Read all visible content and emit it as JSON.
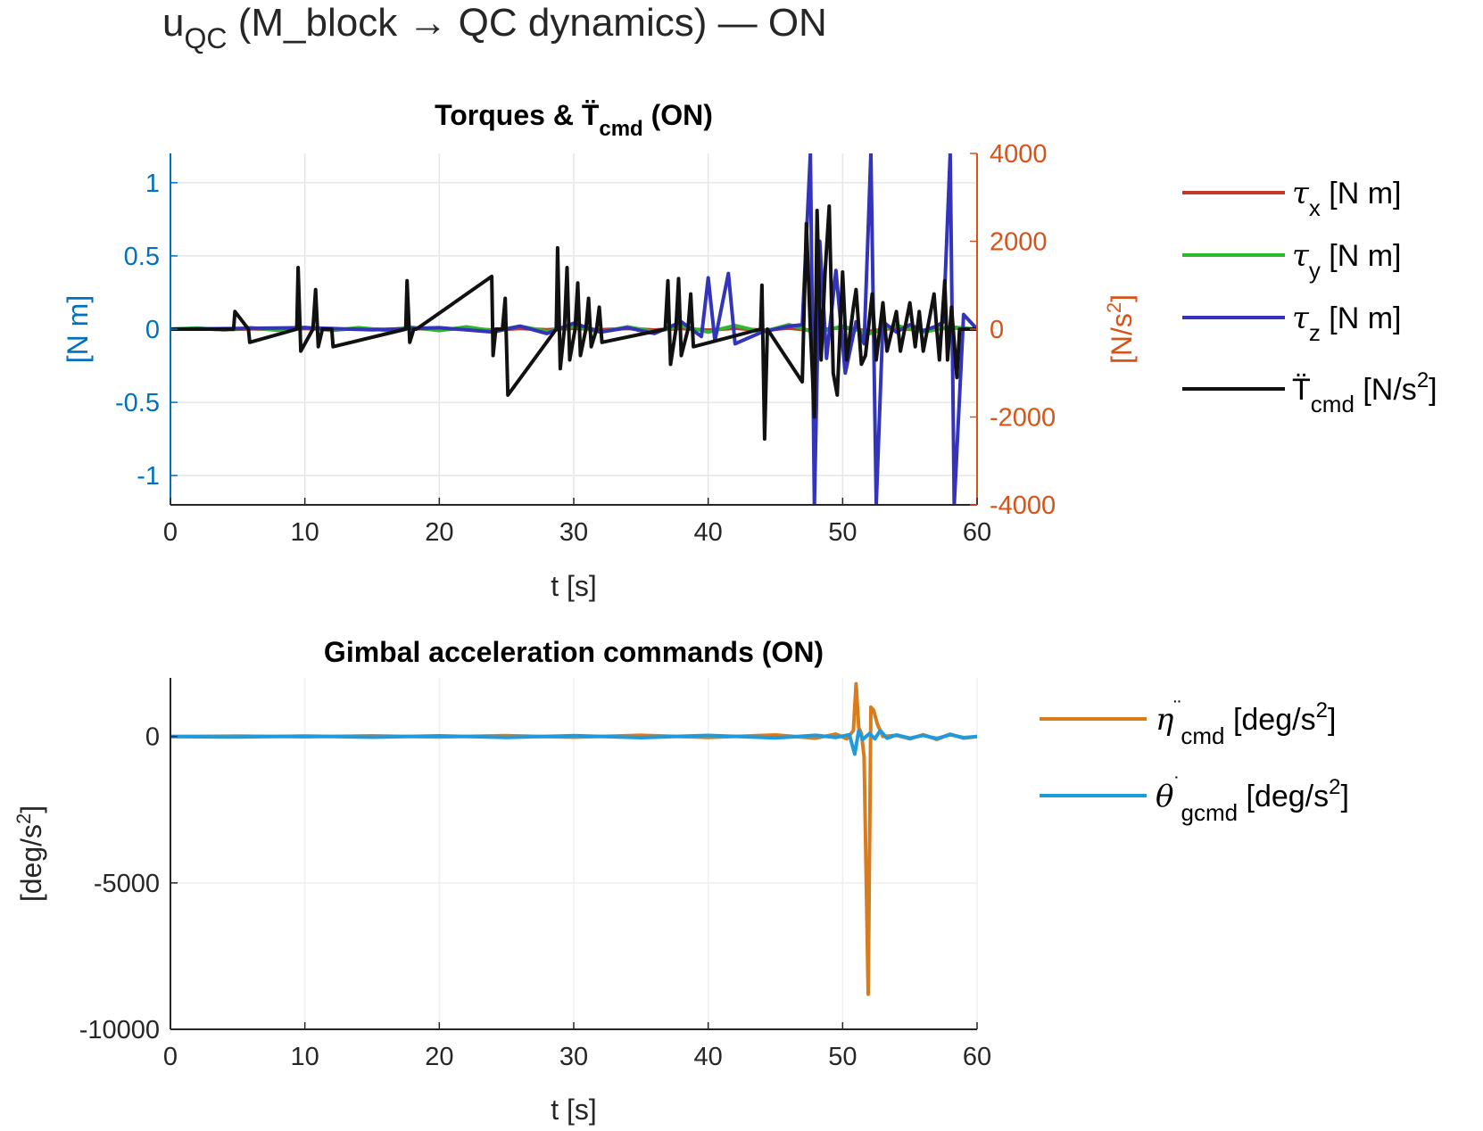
{
  "figure": {
    "title_main": "u",
    "title_sub": "QC",
    "title_rest": " (M_block → QC dynamics) — ON"
  },
  "chart_data": [
    {
      "type": "line",
      "title": "Torques & T̈ cmd (ON)",
      "title_parts": {
        "pre": "Torques & ",
        "base": "T̈",
        "sub": "cmd",
        "post": " (ON)"
      },
      "xlabel": "t [s]",
      "xlim": [
        0,
        60
      ],
      "xticks": [
        0,
        10,
        20,
        30,
        40,
        50,
        60
      ],
      "ylabel_left": "[N m]",
      "ylim_left": [
        -1.2,
        1.2
      ],
      "yticks_left": [
        -1,
        -0.5,
        0,
        0.5,
        1
      ],
      "yticklabels_left": [
        "-1",
        "-0.5",
        "0",
        "0.5",
        "1"
      ],
      "ylabel_right": "[N/s2]",
      "ylabel_right_parts": {
        "base": "[N/s",
        "sup": "2",
        "post": "]"
      },
      "ylim_right": [
        -4000,
        4000
      ],
      "yticks_right": [
        -4000,
        -2000,
        0,
        2000,
        4000
      ],
      "yticklabels_right": [
        "-4000",
        "-2000",
        "0",
        "2000",
        "4000"
      ],
      "left_axis_color": "#0072BD",
      "right_axis_color": "#D95319",
      "grid": true,
      "legend_position": "outside-right",
      "series": [
        {
          "name": "τx [N m]",
          "sym": "τ",
          "sub": "x",
          "unit": " [N m]",
          "sup": "",
          "color": "#C0392B",
          "axis": "left",
          "x": [
            0,
            2,
            4,
            6,
            8,
            10,
            12,
            14,
            16,
            18,
            20,
            22,
            24,
            26,
            28,
            30,
            32,
            34,
            36,
            38,
            40,
            42,
            44,
            46,
            48,
            50,
            52,
            54,
            56,
            58,
            60
          ],
          "y": [
            0,
            0.005,
            -0.004,
            0.003,
            -0.003,
            0.004,
            -0.005,
            0.004,
            -0.003,
            0.006,
            -0.004,
            0.005,
            -0.006,
            0.004,
            -0.005,
            0.006,
            -0.004,
            0.005,
            -0.006,
            0.005,
            -0.007,
            0.006,
            -0.008,
            0.007,
            -0.01,
            0.012,
            -0.015,
            0.01,
            -0.012,
            0.01,
            0
          ]
        },
        {
          "name": "τy [N m]",
          "sym": "τ",
          "sub": "y",
          "unit": " [N m]",
          "sup": "",
          "color": "#2DB82D",
          "axis": "left",
          "x": [
            0,
            2,
            4,
            6,
            8,
            10,
            12,
            14,
            16,
            18,
            20,
            22,
            24,
            26,
            28,
            30,
            32,
            34,
            36,
            38,
            40,
            42,
            44,
            46,
            48,
            50,
            52,
            54,
            56,
            58,
            60
          ],
          "y": [
            0,
            0.008,
            -0.006,
            0.01,
            -0.008,
            0.012,
            -0.01,
            0.01,
            -0.008,
            0.012,
            -0.01,
            0.015,
            -0.012,
            0.02,
            -0.015,
            0.018,
            -0.02,
            0.015,
            -0.018,
            0.02,
            -0.02,
            0.025,
            -0.02,
            0.03,
            -0.025,
            0.02,
            -0.03,
            0.025,
            -0.02,
            0.015,
            0
          ]
        },
        {
          "name": "τz [N m]",
          "sym": "τ",
          "sub": "z",
          "unit": " [N m]",
          "sup": "",
          "color": "#3333BB",
          "axis": "left",
          "x": [
            0,
            5,
            10,
            15,
            20,
            24,
            26,
            28,
            30,
            32,
            34,
            36,
            38,
            39.5,
            40,
            40.5,
            41,
            41.5,
            42,
            44,
            46,
            47,
            47.6,
            47.9,
            48.3,
            48.8,
            49.5,
            50.2,
            51,
            51.6,
            52.1,
            52.5,
            53,
            54,
            55,
            56,
            57,
            57.5,
            58,
            58.3,
            59,
            60
          ],
          "y": [
            0,
            0.005,
            0.01,
            -0.005,
            0.01,
            -0.02,
            0.02,
            -0.03,
            0.04,
            -0.02,
            0.01,
            -0.03,
            0.05,
            -0.05,
            0.35,
            -0.08,
            0.15,
            0.38,
            -0.1,
            -0.02,
            0.02,
            0.03,
            1.2,
            -1.2,
            0.6,
            -0.2,
            0.4,
            -0.3,
            0.05,
            -0.1,
            1.2,
            -1.2,
            0.05,
            -0.02,
            0.03,
            -0.01,
            0.02,
            0.05,
            1.2,
            -1.2,
            0.1,
            0
          ]
        },
        {
          "name": "T̈cmd [N/s2]",
          "sym": "T̈",
          "sub": "cmd",
          "unit": " [N/s",
          "sup": "2",
          "post": "]",
          "color": "#111111",
          "axis": "right",
          "x": [
            0,
            4.7,
            4.8,
            5.8,
            5.9,
            9.4,
            9.5,
            9.7,
            10.6,
            10.8,
            11.0,
            11.3,
            12.0,
            12.1,
            17.5,
            17.6,
            17.8,
            18.1,
            18.3,
            23.9,
            24.0,
            24.2,
            24.7,
            24.9,
            25.1,
            28.7,
            28.8,
            29.0,
            29.3,
            29.5,
            29.7,
            30.1,
            30.3,
            30.5,
            30.9,
            31.1,
            31.3,
            31.7,
            31.9,
            32.1,
            36.8,
            37.0,
            37.2,
            37.6,
            37.8,
            38.0,
            38.5,
            38.7,
            38.9,
            43.9,
            44.0,
            44.2,
            44.4,
            47.0,
            47.3,
            47.6,
            47.9,
            48.1,
            48.4,
            48.7,
            49.0,
            49.3,
            49.6,
            50.0,
            50.3,
            50.8,
            51.0,
            51.4,
            51.7,
            52.2,
            52.5,
            53.0,
            53.3,
            54.0,
            54.3,
            55.0,
            55.4,
            55.7,
            56.0,
            56.8,
            57.0,
            57.2,
            57.6,
            57.8,
            58.1,
            58.5,
            58.7,
            60
          ],
          "y": [
            0,
            0,
            400,
            0,
            -300,
            0,
            1400,
            -500,
            0,
            900,
            -400,
            0,
            0,
            -400,
            0,
            1100,
            -300,
            0,
            0,
            1200,
            -600,
            0,
            0,
            700,
            -1500,
            0,
            1850,
            -900,
            0,
            1400,
            -700,
            0,
            1050,
            -600,
            0,
            700,
            -400,
            0,
            500,
            -300,
            0,
            1100,
            -800,
            0,
            1150,
            -600,
            0,
            800,
            -400,
            0,
            1000,
            -2500,
            0,
            -1200,
            2400,
            0,
            -2000,
            2700,
            -700,
            1300,
            2800,
            -1000,
            -1500,
            1300,
            -700,
            500,
            900,
            -800,
            -600,
            800,
            -700,
            600,
            -500,
            400,
            -500,
            600,
            -400,
            400,
            -500,
            800,
            0,
            -700,
            1100,
            -700,
            500,
            -1100,
            0,
            0
          ]
        }
      ]
    },
    {
      "type": "line",
      "title": "Gimbal acceleration commands (ON)",
      "xlabel": "t [s]",
      "xlim": [
        0,
        60
      ],
      "xticks": [
        0,
        10,
        20,
        30,
        40,
        50,
        60
      ],
      "ylabel": "[deg/s2]",
      "ylabel_parts": {
        "base": "[deg/s",
        "sup": "2",
        "post": "]"
      },
      "ylim": [
        -10000,
        2000
      ],
      "yticks": [
        -10000,
        -5000,
        0
      ],
      "yticklabels": [
        "-10000",
        "-5000",
        "0"
      ],
      "grid": true,
      "legend_position": "outside-right",
      "series": [
        {
          "name": "η̈ cmd [deg/s2]",
          "sym": "η",
          "accent": "¨",
          "sub": "cmd",
          "unit": " [deg/s",
          "sup": "2",
          "post": "]",
          "color": "#D97C1E",
          "x": [
            0,
            5,
            10,
            15,
            20,
            25,
            30,
            35,
            40,
            45,
            48,
            49.5,
            50.3,
            50.8,
            51.0,
            51.2,
            51.4,
            51.6,
            51.9,
            52.1,
            52.3,
            52.6,
            53,
            54,
            55,
            56,
            57,
            58,
            59,
            60
          ],
          "y": [
            0,
            10,
            -10,
            20,
            -15,
            30,
            -25,
            40,
            -30,
            50,
            -60,
            80,
            -80,
            200,
            1800,
            300,
            100,
            -700,
            -8800,
            1000,
            900,
            400,
            0,
            40,
            -80,
            60,
            -100,
            80,
            -60,
            0
          ]
        },
        {
          "name": "θ̇ gcmd [deg/s2]",
          "sym": "θ",
          "accent": "˙",
          "sub": "gcmd",
          "unit": " [deg/s",
          "sup": "2",
          "post": "]",
          "color": "#1F9BDD",
          "x": [
            0,
            5,
            10,
            15,
            20,
            25,
            30,
            35,
            40,
            45,
            48,
            49.5,
            50.5,
            50.9,
            51.2,
            51.5,
            52.0,
            52.4,
            52.8,
            53.3,
            54,
            55,
            56,
            57,
            58,
            59,
            60
          ],
          "y": [
            0,
            -20,
            15,
            -25,
            20,
            -30,
            25,
            -40,
            35,
            -50,
            40,
            -30,
            60,
            -600,
            200,
            -100,
            100,
            -80,
            200,
            -60,
            50,
            -60,
            40,
            -70,
            60,
            -40,
            0
          ]
        }
      ]
    }
  ]
}
